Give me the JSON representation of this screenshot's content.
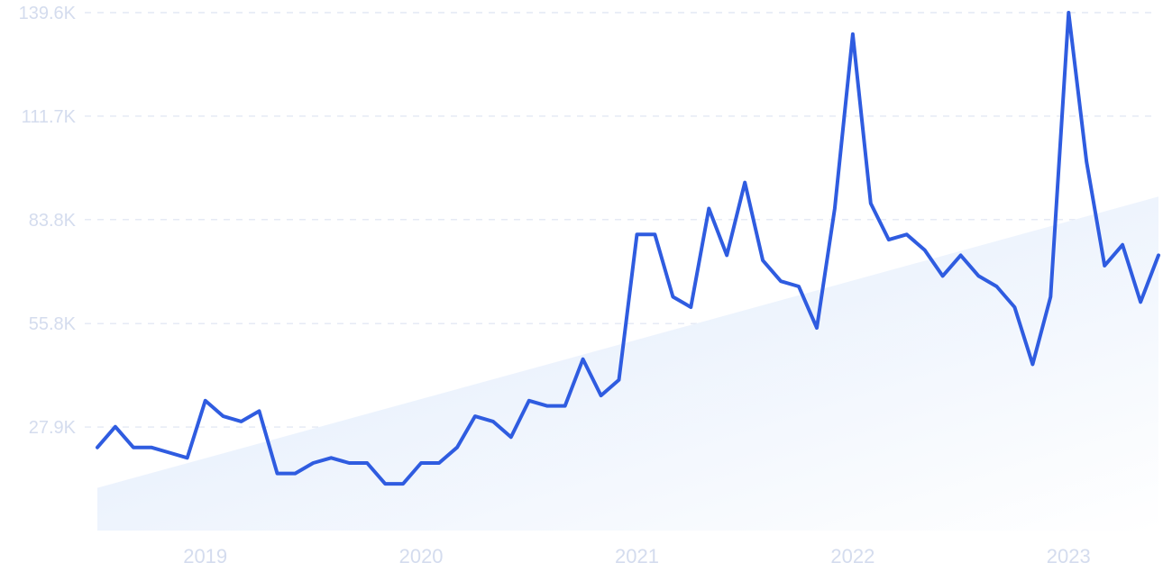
{
  "chart_data": {
    "type": "line",
    "title": "",
    "xlabel": "",
    "ylabel": "",
    "grid": true,
    "ylim": [
      0,
      139.6
    ],
    "y_ticks": [
      {
        "value": 27.9,
        "label": "27.9K"
      },
      {
        "value": 55.8,
        "label": "55.8K"
      },
      {
        "value": 83.8,
        "label": "83.8K"
      },
      {
        "value": 111.7,
        "label": "111.7K"
      },
      {
        "value": 139.6,
        "label": "139.6K"
      }
    ],
    "x_range": [
      "2018-07",
      "2023-06"
    ],
    "x_ticks": [
      {
        "value": "2019-01",
        "label": "2019"
      },
      {
        "value": "2020-01",
        "label": "2020"
      },
      {
        "value": "2021-01",
        "label": "2021"
      },
      {
        "value": "2022-01",
        "label": "2022"
      },
      {
        "value": "2023-01",
        "label": "2023"
      }
    ],
    "series": [
      {
        "color": "#2f5ce0",
        "x": [
          "2018-07",
          "2018-08",
          "2018-09",
          "2018-10",
          "2018-11",
          "2018-12",
          "2019-01",
          "2019-02",
          "2019-03",
          "2019-04",
          "2019-05",
          "2019-06",
          "2019-07",
          "2019-08",
          "2019-09",
          "2019-10",
          "2019-11",
          "2019-12",
          "2020-01",
          "2020-02",
          "2020-03",
          "2020-04",
          "2020-05",
          "2020-06",
          "2020-07",
          "2020-08",
          "2020-09",
          "2020-10",
          "2020-11",
          "2020-12",
          "2021-01",
          "2021-02",
          "2021-03",
          "2021-04",
          "2021-05",
          "2021-06",
          "2021-07",
          "2021-08",
          "2021-09",
          "2021-10",
          "2021-11",
          "2021-12",
          "2022-01",
          "2022-02",
          "2022-03",
          "2022-04",
          "2022-05",
          "2022-06",
          "2022-07",
          "2022-08",
          "2022-09",
          "2022-10",
          "2022-11",
          "2022-12",
          "2023-01",
          "2023-02",
          "2023-03",
          "2023-04",
          "2023-05",
          "2023-06"
        ],
        "y": [
          22.4,
          28,
          22.4,
          22.4,
          21,
          19.6,
          35,
          30.8,
          29.4,
          32.2,
          15.4,
          15.4,
          18.2,
          19.6,
          18.2,
          18.2,
          12.6,
          12.6,
          18.2,
          18.2,
          22.4,
          30.8,
          29.4,
          25.2,
          35,
          33.6,
          33.6,
          46.2,
          36.4,
          40.6,
          79.8,
          79.8,
          63,
          60.2,
          86.8,
          74.2,
          93.8,
          72.8,
          67.2,
          65.8,
          54.6,
          86.8,
          133.8,
          88.2,
          78.4,
          79.8,
          75.6,
          68.6,
          74.2,
          68.6,
          65.8,
          60.2,
          44.8,
          63,
          139.6,
          99.4,
          71.4,
          77,
          61.6,
          74.2
        ]
      }
    ],
    "trend": {
      "color": "#e4eefc",
      "x": [
        "2018-07",
        "2023-06"
      ],
      "y": [
        11.5,
        90
      ]
    }
  }
}
